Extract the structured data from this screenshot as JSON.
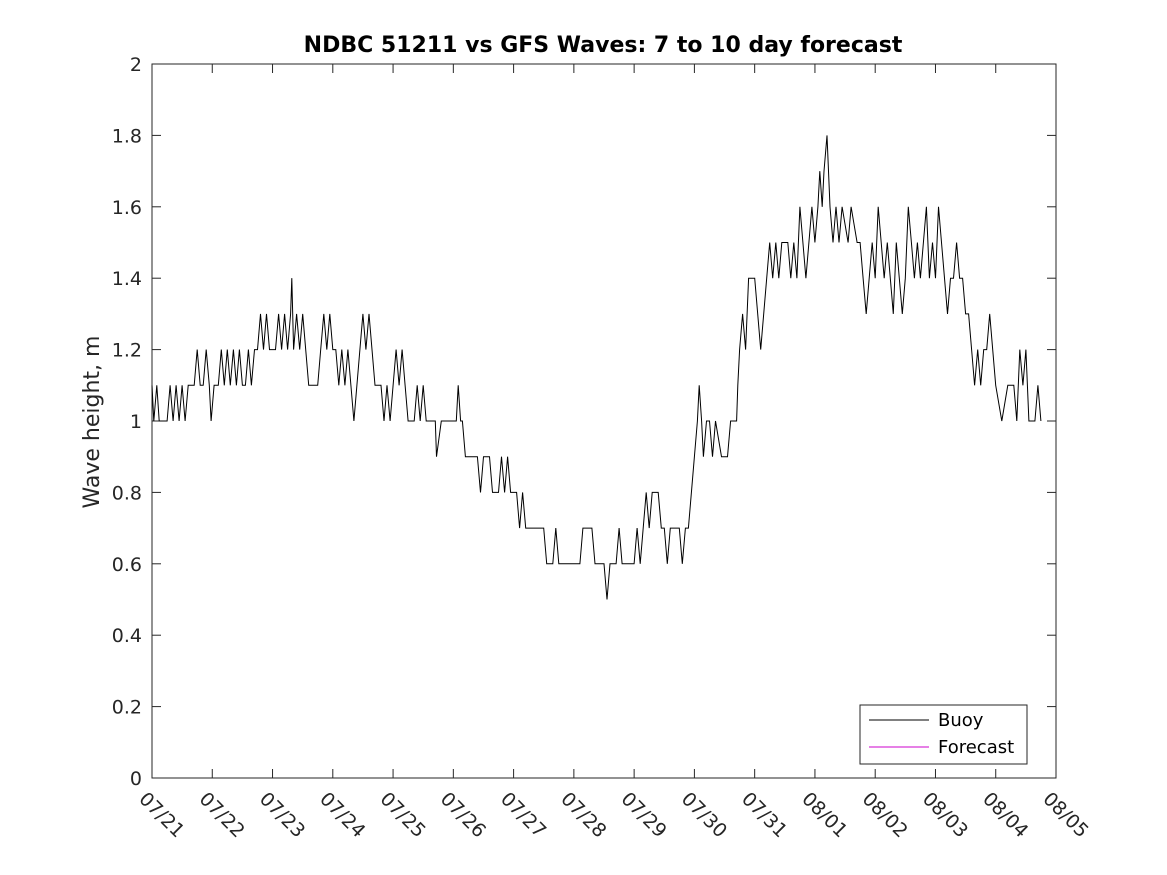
{
  "chart_data": {
    "type": "line",
    "title": "NDBC 51211 vs GFS Waves: 7 to 10 day forecast",
    "xlabel": "",
    "ylabel": "Wave height, m",
    "x_tick_labels": [
      "07/21",
      "07/22",
      "07/23",
      "07/24",
      "07/25",
      "07/26",
      "07/27",
      "07/28",
      "07/29",
      "07/30",
      "07/31",
      "08/01",
      "08/02",
      "08/03",
      "08/04",
      "08/05"
    ],
    "xlim": [
      0,
      15
    ],
    "x_units": "days since 07/21",
    "ylim": [
      0,
      2
    ],
    "y_ticks": [
      0,
      0.2,
      0.4,
      0.6,
      0.8,
      1,
      1.2,
      1.4,
      1.6,
      1.8,
      2
    ],
    "y_tick_labels": [
      "0",
      "0.2",
      "0.4",
      "0.6",
      "0.8",
      "1",
      "1.2",
      "1.4",
      "1.6",
      "1.8",
      "2"
    ],
    "grid": false,
    "legend_position": "bottom-right",
    "series": [
      {
        "name": "Buoy",
        "color": "#000000",
        "points": [
          [
            0,
            1.1
          ],
          [
            0.03,
            1.0
          ],
          [
            0.08,
            1.1
          ],
          [
            0.12,
            1.0
          ],
          [
            0.25,
            1.0
          ],
          [
            0.3,
            1.1
          ],
          [
            0.35,
            1.0
          ],
          [
            0.4,
            1.1
          ],
          [
            0.45,
            1.0
          ],
          [
            0.5,
            1.1
          ],
          [
            0.55,
            1.0
          ],
          [
            0.6,
            1.1
          ],
          [
            0.7,
            1.1
          ],
          [
            0.75,
            1.2
          ],
          [
            0.8,
            1.1
          ],
          [
            0.85,
            1.1
          ],
          [
            0.9,
            1.2
          ],
          [
            0.95,
            1.1
          ],
          [
            0.98,
            1.0
          ],
          [
            1.03,
            1.1
          ],
          [
            1.1,
            1.1
          ],
          [
            1.15,
            1.2
          ],
          [
            1.2,
            1.1
          ],
          [
            1.25,
            1.2
          ],
          [
            1.3,
            1.1
          ],
          [
            1.35,
            1.2
          ],
          [
            1.4,
            1.1
          ],
          [
            1.45,
            1.2
          ],
          [
            1.5,
            1.1
          ],
          [
            1.55,
            1.1
          ],
          [
            1.6,
            1.2
          ],
          [
            1.65,
            1.1
          ],
          [
            1.7,
            1.2
          ],
          [
            1.75,
            1.2
          ],
          [
            1.8,
            1.3
          ],
          [
            1.85,
            1.2
          ],
          [
            1.9,
            1.3
          ],
          [
            1.95,
            1.2
          ],
          [
            2.05,
            1.2
          ],
          [
            2.1,
            1.3
          ],
          [
            2.15,
            1.2
          ],
          [
            2.2,
            1.3
          ],
          [
            2.25,
            1.2
          ],
          [
            2.3,
            1.3
          ],
          [
            2.32,
            1.4
          ],
          [
            2.35,
            1.2
          ],
          [
            2.4,
            1.3
          ],
          [
            2.45,
            1.2
          ],
          [
            2.5,
            1.3
          ],
          [
            2.55,
            1.2
          ],
          [
            2.6,
            1.1
          ],
          [
            2.75,
            1.1
          ],
          [
            2.8,
            1.2
          ],
          [
            2.85,
            1.3
          ],
          [
            2.9,
            1.2
          ],
          [
            2.95,
            1.3
          ],
          [
            3.0,
            1.2
          ],
          [
            3.05,
            1.2
          ],
          [
            3.1,
            1.1
          ],
          [
            3.15,
            1.2
          ],
          [
            3.2,
            1.1
          ],
          [
            3.25,
            1.2
          ],
          [
            3.3,
            1.1
          ],
          [
            3.35,
            1.0
          ],
          [
            3.4,
            1.1
          ],
          [
            3.45,
            1.2
          ],
          [
            3.5,
            1.3
          ],
          [
            3.55,
            1.2
          ],
          [
            3.6,
            1.3
          ],
          [
            3.65,
            1.2
          ],
          [
            3.7,
            1.1
          ],
          [
            3.8,
            1.1
          ],
          [
            3.85,
            1.0
          ],
          [
            3.9,
            1.1
          ],
          [
            3.95,
            1.0
          ],
          [
            4.0,
            1.1
          ],
          [
            4.05,
            1.2
          ],
          [
            4.1,
            1.1
          ],
          [
            4.15,
            1.2
          ],
          [
            4.2,
            1.1
          ],
          [
            4.25,
            1.0
          ],
          [
            4.35,
            1.0
          ],
          [
            4.4,
            1.1
          ],
          [
            4.45,
            1.0
          ],
          [
            4.5,
            1.1
          ],
          [
            4.55,
            1.0
          ],
          [
            4.7,
            1.0
          ],
          [
            4.72,
            0.9
          ],
          [
            4.8,
            1.0
          ],
          [
            5.0,
            1.0
          ],
          [
            5.05,
            1.0
          ],
          [
            5.08,
            1.1
          ],
          [
            5.12,
            1.0
          ],
          [
            5.15,
            1.0
          ],
          [
            5.2,
            0.9
          ],
          [
            5.3,
            0.9
          ],
          [
            5.4,
            0.9
          ],
          [
            5.45,
            0.8
          ],
          [
            5.5,
            0.9
          ],
          [
            5.6,
            0.9
          ],
          [
            5.65,
            0.8
          ],
          [
            5.75,
            0.8
          ],
          [
            5.8,
            0.9
          ],
          [
            5.85,
            0.8
          ],
          [
            5.9,
            0.9
          ],
          [
            5.95,
            0.8
          ],
          [
            6.0,
            0.8
          ],
          [
            6.05,
            0.8
          ],
          [
            6.1,
            0.7
          ],
          [
            6.15,
            0.8
          ],
          [
            6.2,
            0.7
          ],
          [
            6.35,
            0.7
          ],
          [
            6.5,
            0.7
          ],
          [
            6.55,
            0.6
          ],
          [
            6.65,
            0.6
          ],
          [
            6.7,
            0.7
          ],
          [
            6.75,
            0.6
          ],
          [
            6.85,
            0.6
          ],
          [
            7.0,
            0.6
          ],
          [
            7.1,
            0.6
          ],
          [
            7.15,
            0.7
          ],
          [
            7.3,
            0.7
          ],
          [
            7.35,
            0.6
          ],
          [
            7.5,
            0.6
          ],
          [
            7.55,
            0.5
          ],
          [
            7.6,
            0.6
          ],
          [
            7.65,
            0.6
          ],
          [
            7.7,
            0.6
          ],
          [
            7.75,
            0.7
          ],
          [
            7.8,
            0.6
          ],
          [
            7.95,
            0.6
          ],
          [
            8.0,
            0.6
          ],
          [
            8.05,
            0.7
          ],
          [
            8.1,
            0.6
          ],
          [
            8.15,
            0.7
          ],
          [
            8.2,
            0.8
          ],
          [
            8.25,
            0.7
          ],
          [
            8.3,
            0.8
          ],
          [
            8.4,
            0.8
          ],
          [
            8.45,
            0.7
          ],
          [
            8.5,
            0.7
          ],
          [
            8.55,
            0.6
          ],
          [
            8.6,
            0.7
          ],
          [
            8.75,
            0.7
          ],
          [
            8.8,
            0.6
          ],
          [
            8.85,
            0.7
          ],
          [
            8.9,
            0.7
          ],
          [
            8.95,
            0.8
          ],
          [
            9.0,
            0.9
          ],
          [
            9.05,
            1.0
          ],
          [
            9.08,
            1.1
          ],
          [
            9.12,
            1.0
          ],
          [
            9.15,
            0.9
          ],
          [
            9.2,
            1.0
          ],
          [
            9.25,
            1.0
          ],
          [
            9.3,
            0.9
          ],
          [
            9.35,
            1.0
          ],
          [
            9.45,
            0.9
          ],
          [
            9.55,
            0.9
          ],
          [
            9.6,
            1.0
          ],
          [
            9.7,
            1.0
          ],
          [
            9.72,
            1.1
          ],
          [
            9.75,
            1.2
          ],
          [
            9.8,
            1.3
          ],
          [
            9.85,
            1.2
          ],
          [
            9.9,
            1.4
          ],
          [
            10.0,
            1.4
          ],
          [
            10.05,
            1.3
          ],
          [
            10.1,
            1.2
          ],
          [
            10.15,
            1.3
          ],
          [
            10.2,
            1.4
          ],
          [
            10.25,
            1.5
          ],
          [
            10.3,
            1.4
          ],
          [
            10.35,
            1.5
          ],
          [
            10.4,
            1.4
          ],
          [
            10.45,
            1.5
          ],
          [
            10.55,
            1.5
          ],
          [
            10.6,
            1.4
          ],
          [
            10.65,
            1.5
          ],
          [
            10.7,
            1.4
          ],
          [
            10.75,
            1.6
          ],
          [
            10.8,
            1.5
          ],
          [
            10.85,
            1.4
          ],
          [
            10.9,
            1.5
          ],
          [
            10.95,
            1.6
          ],
          [
            11.0,
            1.5
          ],
          [
            11.05,
            1.6
          ],
          [
            11.08,
            1.7
          ],
          [
            11.12,
            1.6
          ],
          [
            11.15,
            1.7
          ],
          [
            11.2,
            1.8
          ],
          [
            11.25,
            1.6
          ],
          [
            11.3,
            1.5
          ],
          [
            11.35,
            1.6
          ],
          [
            11.4,
            1.5
          ],
          [
            11.45,
            1.6
          ],
          [
            11.55,
            1.5
          ],
          [
            11.6,
            1.6
          ],
          [
            11.7,
            1.5
          ],
          [
            11.75,
            1.5
          ],
          [
            11.8,
            1.4
          ],
          [
            11.85,
            1.3
          ],
          [
            11.9,
            1.4
          ],
          [
            11.95,
            1.5
          ],
          [
            12.0,
            1.4
          ],
          [
            12.05,
            1.6
          ],
          [
            12.1,
            1.5
          ],
          [
            12.15,
            1.4
          ],
          [
            12.2,
            1.5
          ],
          [
            12.25,
            1.4
          ],
          [
            12.3,
            1.3
          ],
          [
            12.35,
            1.5
          ],
          [
            12.4,
            1.4
          ],
          [
            12.45,
            1.3
          ],
          [
            12.5,
            1.4
          ],
          [
            12.55,
            1.6
          ],
          [
            12.6,
            1.5
          ],
          [
            12.65,
            1.4
          ],
          [
            12.7,
            1.5
          ],
          [
            12.75,
            1.4
          ],
          [
            12.8,
            1.5
          ],
          [
            12.85,
            1.6
          ],
          [
            12.9,
            1.4
          ],
          [
            12.95,
            1.5
          ],
          [
            13.0,
            1.4
          ],
          [
            13.05,
            1.6
          ],
          [
            13.1,
            1.5
          ],
          [
            13.15,
            1.4
          ],
          [
            13.2,
            1.3
          ],
          [
            13.25,
            1.4
          ],
          [
            13.3,
            1.4
          ],
          [
            13.35,
            1.5
          ],
          [
            13.4,
            1.4
          ],
          [
            13.45,
            1.4
          ],
          [
            13.5,
            1.3
          ],
          [
            13.55,
            1.3
          ],
          [
            13.6,
            1.2
          ],
          [
            13.65,
            1.1
          ],
          [
            13.7,
            1.2
          ],
          [
            13.75,
            1.1
          ],
          [
            13.8,
            1.2
          ],
          [
            13.85,
            1.2
          ],
          [
            13.9,
            1.3
          ],
          [
            13.95,
            1.2
          ],
          [
            14.0,
            1.1
          ],
          [
            14.1,
            1.0
          ],
          [
            14.2,
            1.1
          ],
          [
            14.3,
            1.1
          ],
          [
            14.35,
            1.0
          ],
          [
            14.4,
            1.2
          ],
          [
            14.45,
            1.1
          ],
          [
            14.5,
            1.2
          ],
          [
            14.55,
            1.0
          ],
          [
            14.65,
            1.0
          ],
          [
            14.7,
            1.1
          ],
          [
            14.75,
            1.0
          ]
        ]
      },
      {
        "name": "Forecast",
        "color": "#cc00cc",
        "points": []
      }
    ]
  }
}
